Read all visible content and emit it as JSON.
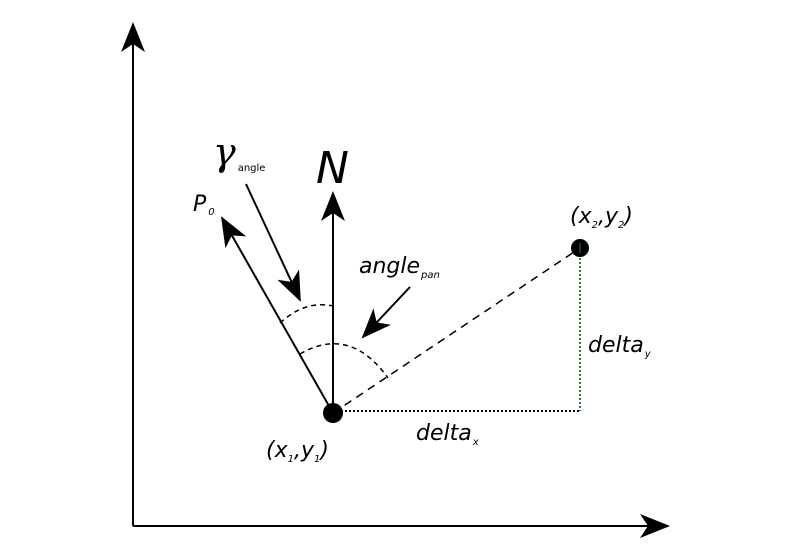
{
  "diagram": {
    "north_label": "N",
    "gamma": {
      "symbol": "γ",
      "subscript": "angle"
    },
    "p0": {
      "base": "P",
      "subscript": "0"
    },
    "angle_pan": {
      "base": "angle",
      "subscript": "pan"
    },
    "point1": {
      "open": "(x",
      "s1": "1",
      "mid": ",y",
      "s2": "1",
      "close": ")"
    },
    "point2": {
      "open": "(x",
      "s1": "2",
      "mid": ",y",
      "s2": "2",
      "close": ")"
    },
    "delta_x": {
      "base": "delta",
      "subscript": "x"
    },
    "delta_y": {
      "base": "delta",
      "subscript": "y"
    },
    "colors": {
      "ink": "#000000",
      "delta_y_line": "#2e7d32"
    }
  }
}
